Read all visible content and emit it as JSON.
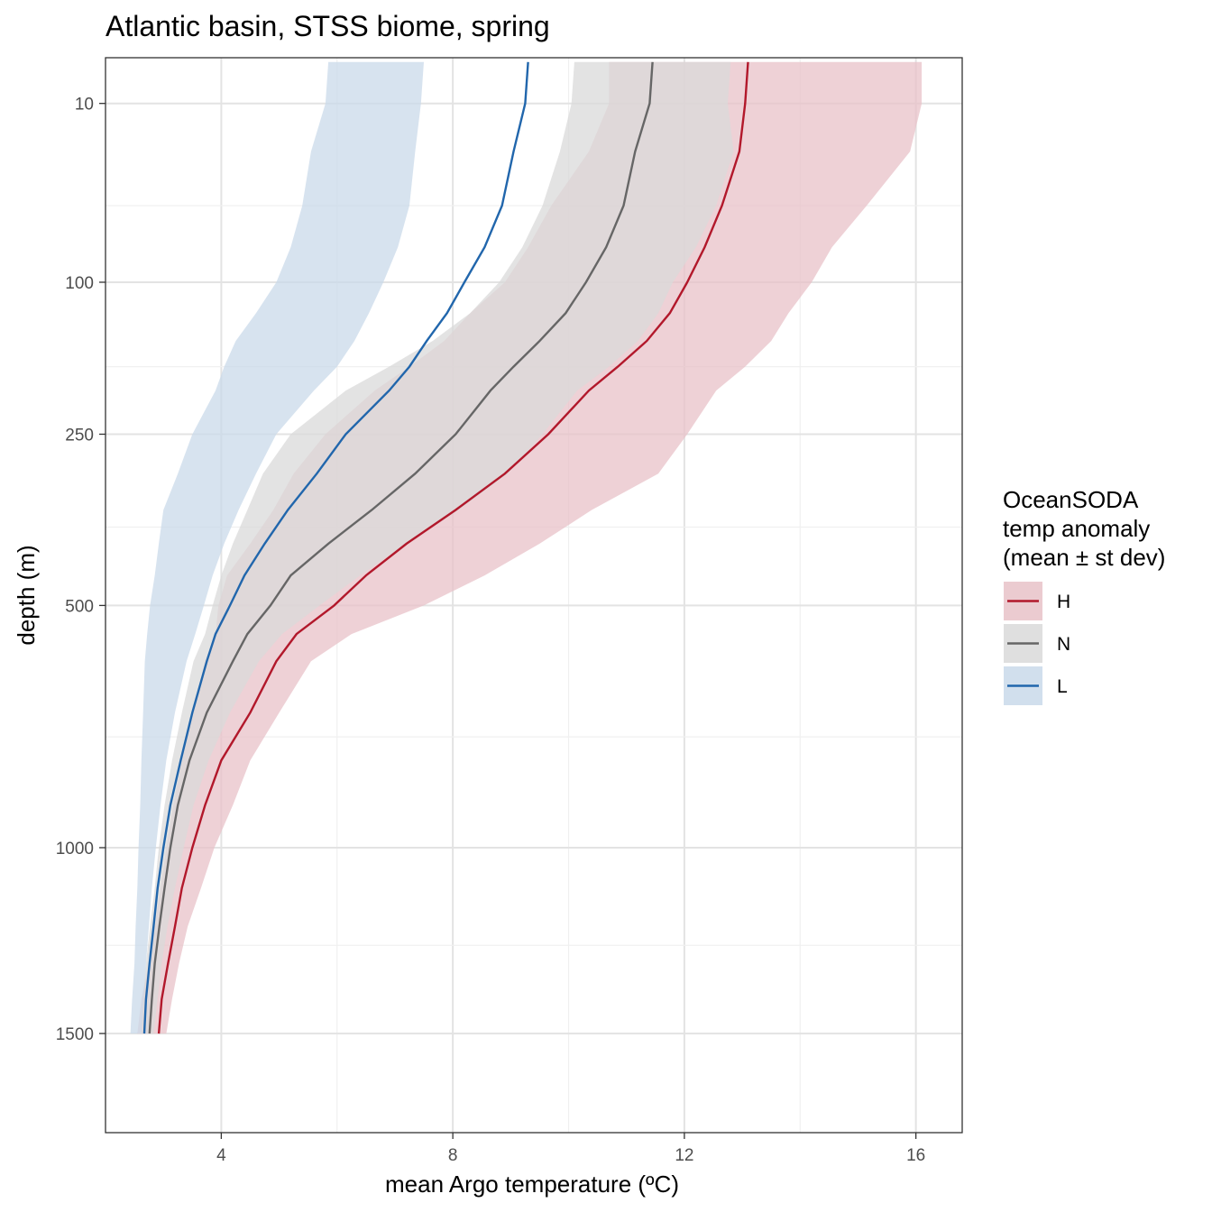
{
  "chart_data": {
    "type": "line",
    "title": "Atlantic basin, STSS biome, spring",
    "xlabel": "mean Argo temperature (ºC)",
    "ylabel": "depth (m)",
    "x_ticks": [
      4,
      8,
      12,
      16
    ],
    "y_ticks": [
      10,
      100,
      250,
      500,
      1000,
      1500
    ],
    "y_tick_labels": [
      "10",
      "100",
      "250",
      "500",
      "1000",
      "1500"
    ],
    "xlim": [
      2.0,
      16.8
    ],
    "ylim": [
      1800,
      0
    ],
    "y_scale": "sqrt, reversed",
    "grid": true,
    "legend": {
      "title_lines": [
        "OceanSODA",
        "temp anomaly",
        "(mean ± st dev)"
      ],
      "position": "right"
    },
    "depth": [
      2.5,
      10,
      25,
      50,
      75,
      100,
      125,
      150,
      175,
      200,
      250,
      300,
      350,
      400,
      450,
      500,
      550,
      600,
      700,
      800,
      900,
      1000,
      1100,
      1200,
      1300,
      1400,
      1500
    ],
    "series": [
      {
        "name": "H",
        "color": "#b2182b",
        "fill": "#e8c2c8",
        "mean": [
          13.1,
          13.05,
          12.95,
          12.65,
          12.35,
          12.05,
          11.75,
          11.35,
          10.85,
          10.35,
          9.65,
          8.9,
          8.05,
          7.2,
          6.5,
          5.95,
          5.3,
          4.95,
          4.5,
          4.0,
          3.72,
          3.5,
          3.32,
          3.2,
          3.08,
          2.97,
          2.92
        ],
        "lower": [
          10.7,
          10.7,
          10.35,
          9.7,
          9.3,
          8.9,
          8.3,
          7.85,
          7.25,
          6.65,
          5.8,
          5.25,
          4.9,
          4.5,
          4.1,
          3.95,
          3.9,
          3.72,
          3.5,
          3.32,
          3.17,
          3.05,
          2.95,
          2.85,
          2.75,
          2.62,
          2.55
        ],
        "upper": [
          16.1,
          16.1,
          15.9,
          15.15,
          14.55,
          14.2,
          13.8,
          13.5,
          13.05,
          12.55,
          12.05,
          11.55,
          10.4,
          9.5,
          8.55,
          7.5,
          6.25,
          5.55,
          5.0,
          4.5,
          4.2,
          3.88,
          3.65,
          3.42,
          3.27,
          3.15,
          3.05
        ]
      },
      {
        "name": "N",
        "color": "#666666",
        "fill": "#d9d9d9",
        "mean": [
          11.45,
          11.4,
          11.15,
          10.95,
          10.65,
          10.3,
          9.95,
          9.5,
          9.05,
          8.65,
          8.05,
          7.35,
          6.6,
          5.85,
          5.2,
          4.85,
          4.45,
          4.2,
          3.75,
          3.45,
          3.25,
          3.12,
          3.02,
          2.93,
          2.85,
          2.8,
          2.76
        ],
        "lower": [
          10.1,
          10.05,
          9.85,
          9.55,
          9.2,
          8.8,
          8.3,
          7.65,
          6.9,
          6.15,
          5.2,
          4.72,
          4.45,
          4.2,
          4.0,
          3.85,
          3.72,
          3.52,
          3.32,
          3.15,
          3.02,
          2.92,
          2.85,
          2.77,
          2.7,
          2.65,
          2.61
        ],
        "upper": [
          12.8,
          12.75,
          12.85,
          12.55,
          12.2,
          11.8,
          11.55,
          11.2,
          10.7,
          10.15,
          9.55,
          8.95,
          8.1,
          7.2,
          6.4,
          5.7,
          5.05,
          4.65,
          4.15,
          3.78,
          3.52,
          3.35,
          3.2,
          3.07,
          2.97,
          2.9,
          2.83
        ]
      },
      {
        "name": "L",
        "color": "#2166ac",
        "fill": "#c9d9ea",
        "mean": [
          9.3,
          9.25,
          9.05,
          8.85,
          8.55,
          8.2,
          7.9,
          7.55,
          7.25,
          6.9,
          6.15,
          5.65,
          5.15,
          4.75,
          4.4,
          4.15,
          3.9,
          3.75,
          3.5,
          3.3,
          3.12,
          3.0,
          2.9,
          2.83,
          2.76,
          2.7,
          2.67
        ],
        "lower": [
          5.85,
          5.8,
          5.55,
          5.4,
          5.2,
          4.95,
          4.6,
          4.25,
          4.05,
          3.9,
          3.5,
          3.25,
          3.0,
          2.92,
          2.85,
          2.77,
          2.72,
          2.68,
          2.65,
          2.62,
          2.6,
          2.57,
          2.55,
          2.52,
          2.5,
          2.46,
          2.43
        ],
        "upper": [
          7.5,
          7.45,
          7.35,
          7.25,
          7.05,
          6.8,
          6.55,
          6.3,
          6.0,
          5.6,
          4.95,
          4.6,
          4.3,
          4.05,
          3.85,
          3.7,
          3.55,
          3.4,
          3.2,
          3.05,
          2.95,
          2.87,
          2.8,
          2.75,
          2.7,
          2.66,
          2.62
        ]
      }
    ]
  }
}
